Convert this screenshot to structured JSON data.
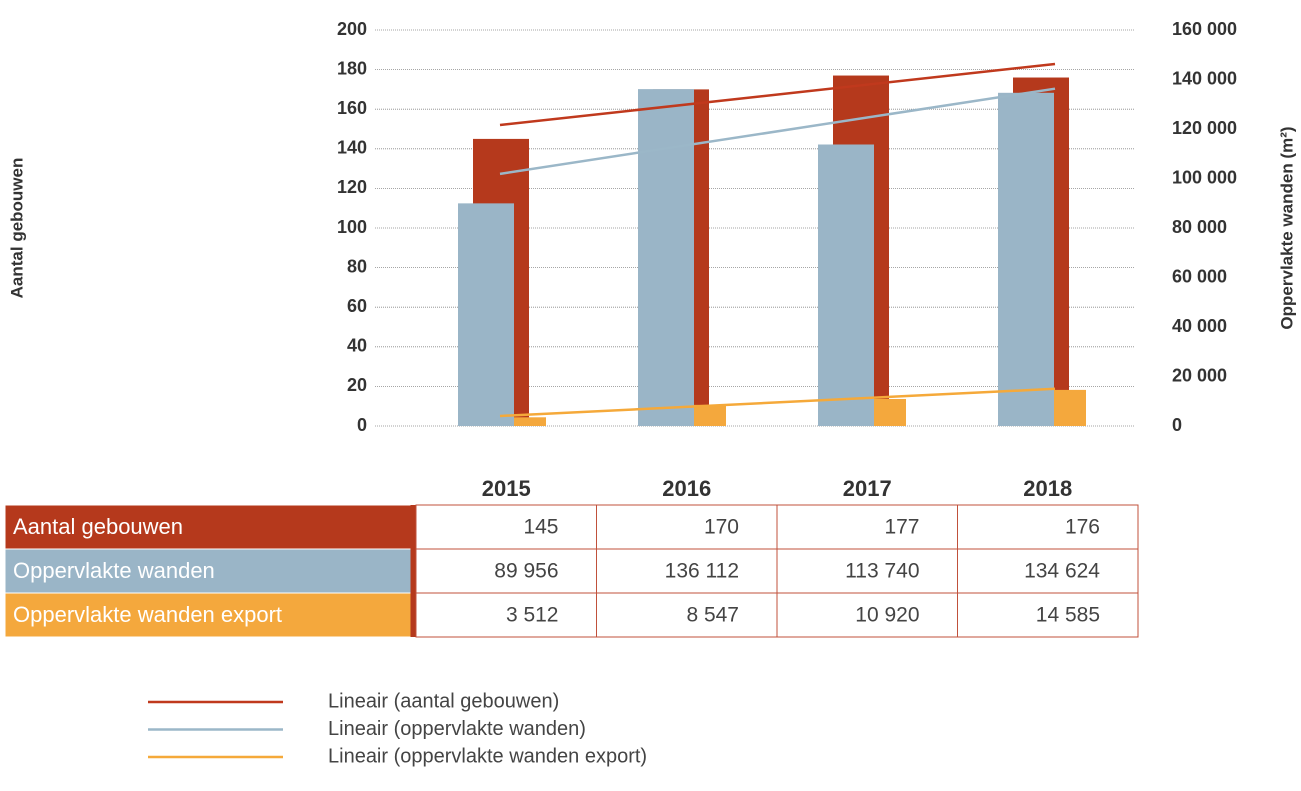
{
  "chart_data": {
    "type": "bar",
    "categories": [
      "2015",
      "2016",
      "2017",
      "2018"
    ],
    "series": [
      {
        "name": "Aantal gebouwen",
        "color": "#b5391c",
        "values": [
          145,
          170,
          177,
          176
        ]
      },
      {
        "name": "Oppervlakte wanden",
        "color": "#9ab5c7",
        "axis": "y2",
        "values": [
          89956,
          136112,
          113740,
          134624
        ],
        "value_labels": [
          "89 956",
          "136 112",
          "113 740",
          "134 624"
        ]
      },
      {
        "name": "Oppervlakte wanden export",
        "color": "#f4a83d",
        "axis": "y2",
        "values": [
          3512,
          8547,
          10920,
          14585
        ],
        "value_labels": [
          "3 512",
          "8 547",
          "10 920",
          "14 585"
        ]
      }
    ],
    "trendlines": [
      {
        "name": "Lineair (aantal gebouwen)",
        "color": "#c0391d"
      },
      {
        "name": "Lineair (oppervlakte wanden)",
        "color": "#9bb7c8"
      },
      {
        "name": "Lineair (oppervlakte wanden export)",
        "color": "#f5a93a"
      }
    ],
    "ylabel": "Aantal gebouwen",
    "y2label": "Oppervlakte wanden (m²)",
    "ylim": [
      0,
      200
    ],
    "yticks": [
      0,
      20,
      40,
      60,
      80,
      100,
      120,
      140,
      160,
      180,
      200
    ],
    "y2lim": [
      0,
      160000
    ],
    "y2ticks": [
      0,
      {
        "value": 20000,
        "label": "20 000"
      },
      {
        "value": 40000,
        "label": "40 000"
      },
      {
        "value": 60000,
        "label": "60 000"
      },
      {
        "value": 80000,
        "label": "80 000"
      },
      {
        "value": 100000,
        "label": "100 000"
      },
      {
        "value": 120000,
        "label": "120 000"
      },
      {
        "value": 140000,
        "label": "140 000"
      },
      {
        "value": 160000,
        "label": "160 000"
      }
    ],
    "grid": true
  }
}
